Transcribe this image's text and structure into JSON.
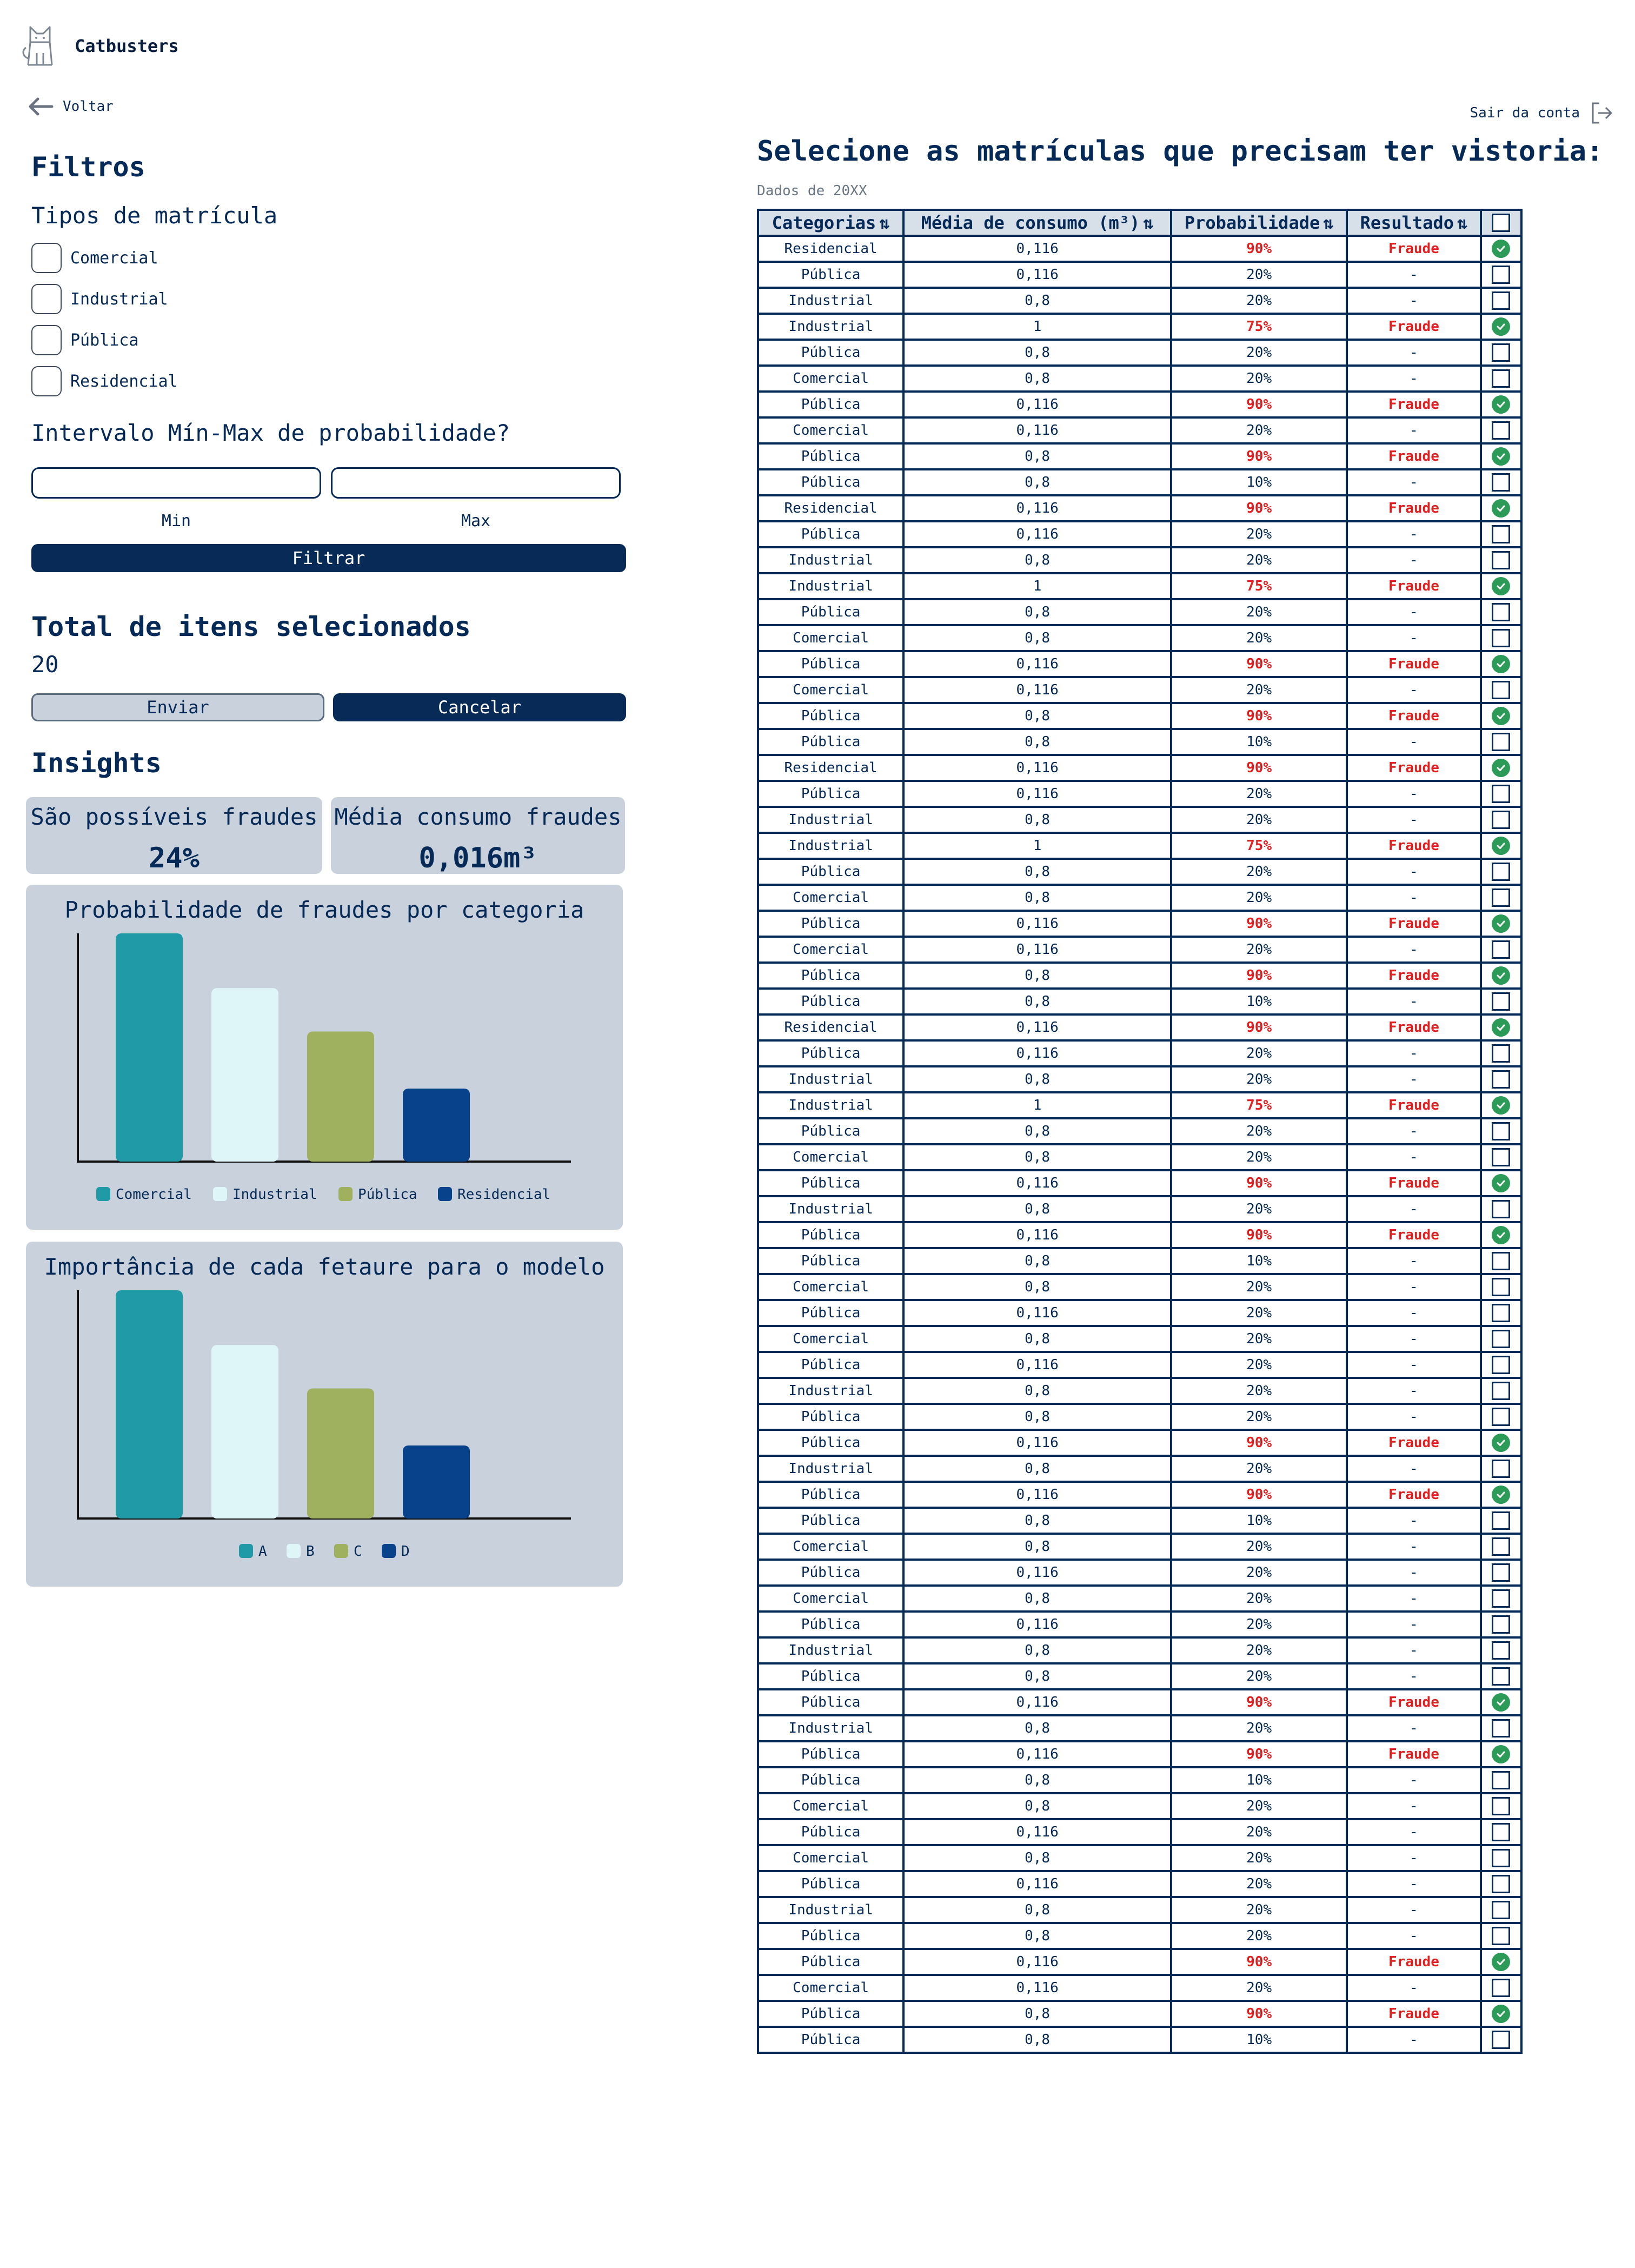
{
  "header": {
    "brand": "Catbusters",
    "back_label": "Voltar",
    "logout_label": "Sair da conta"
  },
  "filters": {
    "title": "Filtros",
    "types_title": "Tipos de matrícula",
    "types": [
      "Comercial",
      "Industrial",
      "Pública",
      "Residencial"
    ],
    "interval_title": "Intervalo Mín-Max de probabilidade?",
    "min_label": "Min",
    "max_label": "Max",
    "min_value": "",
    "max_value": "",
    "filter_button": "Filtrar"
  },
  "selection": {
    "title": "Total de itens selecionados",
    "count": "20",
    "send_button": "Enviar",
    "cancel_button": "Cancelar"
  },
  "insights": {
    "title": "Insights",
    "kpi1_label": "São possíveis fraudes",
    "kpi1_value": "24%",
    "kpi2_label": "Média consumo fraudes",
    "kpi2_value": "0,016m³"
  },
  "colors": {
    "navy": "#062a57",
    "teal": "#1f9aa6",
    "light_cyan": "#dff6f9",
    "olive": "#9fb05f",
    "blue": "#07428a",
    "fraud_red": "#e02020",
    "check_green": "#2c9b57",
    "card_gray": "#c9d2dc"
  },
  "chart_data": [
    {
      "type": "bar",
      "title": "Probabilidade de fraudes por categoria",
      "categories": [
        "Comercial",
        "Industrial",
        "Pública",
        "Residencial"
      ],
      "values": [
        100,
        76,
        57,
        32
      ],
      "colors": [
        "#1f9aa6",
        "#dff6f9",
        "#9fb05f",
        "#07428a"
      ],
      "ylim": [
        0,
        100
      ],
      "legend": "bottom"
    },
    {
      "type": "bar",
      "title": "Importância de cada fetaure para o modelo",
      "categories": [
        "A",
        "B",
        "C",
        "D"
      ],
      "values": [
        100,
        76,
        57,
        32
      ],
      "colors": [
        "#1f9aa6",
        "#dff6f9",
        "#9fb05f",
        "#07428a"
      ],
      "ylim": [
        0,
        100
      ],
      "legend": "bottom"
    }
  ],
  "table": {
    "title": "Selecione as matrículas que precisam ter vistoria:",
    "caption": "Dados de 20XX",
    "headers": [
      "Categorias",
      "Média de consumo (m³)",
      "Probabilidade",
      "Resultado"
    ],
    "rows": [
      [
        "Residencial",
        "0,116",
        "90%",
        "Fraude",
        true
      ],
      [
        "Pública",
        "0,116",
        "20%",
        "-",
        false
      ],
      [
        "Industrial",
        "0,8",
        "20%",
        "-",
        false
      ],
      [
        "Industrial",
        "1",
        "75%",
        "Fraude",
        true
      ],
      [
        "Pública",
        "0,8",
        "20%",
        "-",
        false
      ],
      [
        "Comercial",
        "0,8",
        "20%",
        "-",
        false
      ],
      [
        "Pública",
        "0,116",
        "90%",
        "Fraude",
        true
      ],
      [
        "Comercial",
        "0,116",
        "20%",
        "-",
        false
      ],
      [
        "Pública",
        "0,8",
        "90%",
        "Fraude",
        true
      ],
      [
        "Pública",
        "0,8",
        "10%",
        "-",
        false
      ],
      [
        "Residencial",
        "0,116",
        "90%",
        "Fraude",
        true
      ],
      [
        "Pública",
        "0,116",
        "20%",
        "-",
        false
      ],
      [
        "Industrial",
        "0,8",
        "20%",
        "-",
        false
      ],
      [
        "Industrial",
        "1",
        "75%",
        "Fraude",
        true
      ],
      [
        "Pública",
        "0,8",
        "20%",
        "-",
        false
      ],
      [
        "Comercial",
        "0,8",
        "20%",
        "-",
        false
      ],
      [
        "Pública",
        "0,116",
        "90%",
        "Fraude",
        true
      ],
      [
        "Comercial",
        "0,116",
        "20%",
        "-",
        false
      ],
      [
        "Pública",
        "0,8",
        "90%",
        "Fraude",
        true
      ],
      [
        "Pública",
        "0,8",
        "10%",
        "-",
        false
      ],
      [
        "Residencial",
        "0,116",
        "90%",
        "Fraude",
        true
      ],
      [
        "Pública",
        "0,116",
        "20%",
        "-",
        false
      ],
      [
        "Industrial",
        "0,8",
        "20%",
        "-",
        false
      ],
      [
        "Industrial",
        "1",
        "75%",
        "Fraude",
        true
      ],
      [
        "Pública",
        "0,8",
        "20%",
        "-",
        false
      ],
      [
        "Comercial",
        "0,8",
        "20%",
        "-",
        false
      ],
      [
        "Pública",
        "0,116",
        "90%",
        "Fraude",
        true
      ],
      [
        "Comercial",
        "0,116",
        "20%",
        "-",
        false
      ],
      [
        "Pública",
        "0,8",
        "90%",
        "Fraude",
        true
      ],
      [
        "Pública",
        "0,8",
        "10%",
        "-",
        false
      ],
      [
        "Residencial",
        "0,116",
        "90%",
        "Fraude",
        true
      ],
      [
        "Pública",
        "0,116",
        "20%",
        "-",
        false
      ],
      [
        "Industrial",
        "0,8",
        "20%",
        "-",
        false
      ],
      [
        "Industrial",
        "1",
        "75%",
        "Fraude",
        true
      ],
      [
        "Pública",
        "0,8",
        "20%",
        "-",
        false
      ],
      [
        "Comercial",
        "0,8",
        "20%",
        "-",
        false
      ],
      [
        "Pública",
        "0,116",
        "90%",
        "Fraude",
        true
      ],
      [
        "Industrial",
        "0,8",
        "20%",
        "-",
        false
      ],
      [
        "Pública",
        "0,116",
        "90%",
        "Fraude",
        true
      ],
      [
        "Pública",
        "0,8",
        "10%",
        "-",
        false
      ],
      [
        "Comercial",
        "0,8",
        "20%",
        "-",
        false
      ],
      [
        "Pública",
        "0,116",
        "20%",
        "-",
        false
      ],
      [
        "Comercial",
        "0,8",
        "20%",
        "-",
        false
      ],
      [
        "Pública",
        "0,116",
        "20%",
        "-",
        false
      ],
      [
        "Industrial",
        "0,8",
        "20%",
        "-",
        false
      ],
      [
        "Pública",
        "0,8",
        "20%",
        "-",
        false
      ],
      [
        "Pública",
        "0,116",
        "90%",
        "Fraude",
        true
      ],
      [
        "Industrial",
        "0,8",
        "20%",
        "-",
        false
      ],
      [
        "Pública",
        "0,116",
        "90%",
        "Fraude",
        true
      ],
      [
        "Pública",
        "0,8",
        "10%",
        "-",
        false
      ],
      [
        "Comercial",
        "0,8",
        "20%",
        "-",
        false
      ],
      [
        "Pública",
        "0,116",
        "20%",
        "-",
        false
      ],
      [
        "Comercial",
        "0,8",
        "20%",
        "-",
        false
      ],
      [
        "Pública",
        "0,116",
        "20%",
        "-",
        false
      ],
      [
        "Industrial",
        "0,8",
        "20%",
        "-",
        false
      ],
      [
        "Pública",
        "0,8",
        "20%",
        "-",
        false
      ],
      [
        "Pública",
        "0,116",
        "90%",
        "Fraude",
        true
      ],
      [
        "Industrial",
        "0,8",
        "20%",
        "-",
        false
      ],
      [
        "Pública",
        "0,116",
        "90%",
        "Fraude",
        true
      ],
      [
        "Pública",
        "0,8",
        "10%",
        "-",
        false
      ],
      [
        "Comercial",
        "0,8",
        "20%",
        "-",
        false
      ],
      [
        "Pública",
        "0,116",
        "20%",
        "-",
        false
      ],
      [
        "Comercial",
        "0,8",
        "20%",
        "-",
        false
      ],
      [
        "Pública",
        "0,116",
        "20%",
        "-",
        false
      ],
      [
        "Industrial",
        "0,8",
        "20%",
        "-",
        false
      ],
      [
        "Pública",
        "0,8",
        "20%",
        "-",
        false
      ],
      [
        "Pública",
        "0,116",
        "90%",
        "Fraude",
        true
      ],
      [
        "Comercial",
        "0,116",
        "20%",
        "-",
        false
      ],
      [
        "Pública",
        "0,8",
        "90%",
        "Fraude",
        true
      ],
      [
        "Pública",
        "0,8",
        "10%",
        "-",
        false
      ]
    ]
  }
}
